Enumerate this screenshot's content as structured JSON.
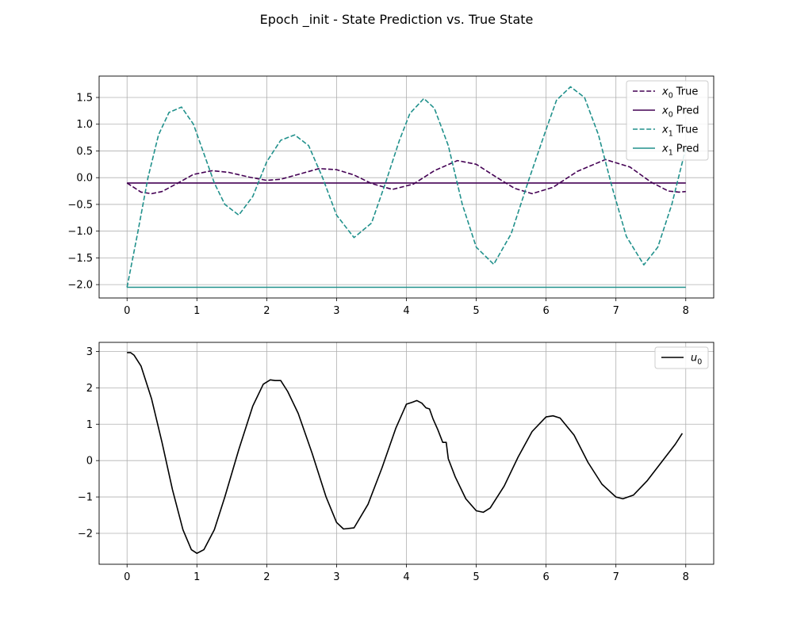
{
  "figure": {
    "title": "Epoch _init - State Prediction vs. True State"
  },
  "chart_data": [
    {
      "type": "line",
      "title": "",
      "xlabel": "",
      "ylabel": "",
      "xlim": [
        -0.4,
        8.4
      ],
      "ylim": [
        -2.25,
        1.9
      ],
      "xticks": [
        0,
        1,
        2,
        3,
        4,
        5,
        6,
        7,
        8
      ],
      "yticks": [
        -2.0,
        -1.5,
        -1.0,
        -0.5,
        0.0,
        0.5,
        1.0,
        1.5
      ],
      "ytick_labels": [
        "−2.0",
        "−1.5",
        "−1.0",
        "−0.5",
        "0.0",
        "0.5",
        "1.0",
        "1.5"
      ],
      "grid": true,
      "legend_position": "top-right",
      "series": [
        {
          "name": "True",
          "subscript_var": "x",
          "subscript_index": "0",
          "color": "#440154",
          "style": "dashed",
          "x": [
            0.0,
            0.2,
            0.35,
            0.5,
            0.7,
            0.95,
            1.22,
            1.45,
            1.75,
            2.0,
            2.2,
            2.45,
            2.75,
            3.0,
            3.25,
            3.5,
            3.8,
            4.1,
            4.4,
            4.73,
            5.0,
            5.3,
            5.55,
            5.8,
            6.1,
            6.45,
            6.85,
            7.2,
            7.5,
            7.75,
            7.9,
            8.0
          ],
          "y": [
            -0.1,
            -0.27,
            -0.3,
            -0.26,
            -0.12,
            0.06,
            0.13,
            0.1,
            0.01,
            -0.05,
            -0.03,
            0.06,
            0.17,
            0.15,
            0.05,
            -0.11,
            -0.22,
            -0.12,
            0.13,
            0.32,
            0.25,
            0.0,
            -0.2,
            -0.3,
            -0.18,
            0.12,
            0.34,
            0.2,
            -0.08,
            -0.25,
            -0.27,
            -0.26
          ]
        },
        {
          "name": "Pred",
          "subscript_var": "x",
          "subscript_index": "0",
          "color": "#440154",
          "style": "solid",
          "x": [
            0.0,
            8.0
          ],
          "y": [
            -0.1,
            -0.1
          ]
        },
        {
          "name": "True",
          "subscript_var": "x",
          "subscript_index": "1",
          "color": "#21918c",
          "style": "dashed",
          "x": [
            0.0,
            0.15,
            0.3,
            0.45,
            0.6,
            0.78,
            0.95,
            1.1,
            1.25,
            1.4,
            1.6,
            1.8,
            2.0,
            2.2,
            2.4,
            2.6,
            2.8,
            3.0,
            3.25,
            3.5,
            3.7,
            3.9,
            4.05,
            4.25,
            4.4,
            4.6,
            4.8,
            5.0,
            5.25,
            5.5,
            5.75,
            6.0,
            6.15,
            6.35,
            6.55,
            6.75,
            6.95,
            7.15,
            7.4,
            7.6,
            7.8,
            8.0
          ],
          "y": [
            -2.05,
            -1.05,
            0.0,
            0.8,
            1.22,
            1.32,
            1.0,
            0.45,
            -0.1,
            -0.5,
            -0.7,
            -0.35,
            0.3,
            0.7,
            0.8,
            0.6,
            0.0,
            -0.7,
            -1.12,
            -0.85,
            -0.1,
            0.7,
            1.2,
            1.48,
            1.3,
            0.6,
            -0.5,
            -1.3,
            -1.62,
            -1.05,
            -0.05,
            0.9,
            1.45,
            1.7,
            1.5,
            0.8,
            -0.2,
            -1.1,
            -1.63,
            -1.3,
            -0.5,
            0.55
          ]
        },
        {
          "name": "Pred",
          "subscript_var": "x",
          "subscript_index": "1",
          "color": "#21918c",
          "style": "solid",
          "x": [
            0.0,
            8.0
          ],
          "y": [
            -2.05,
            -2.05
          ]
        }
      ]
    },
    {
      "type": "line",
      "title": "",
      "xlabel": "",
      "ylabel": "",
      "xlim": [
        -0.4,
        8.4
      ],
      "ylim": [
        -2.85,
        3.25
      ],
      "xticks": [
        0,
        1,
        2,
        3,
        4,
        5,
        6,
        7,
        8
      ],
      "yticks": [
        -2,
        -1,
        0,
        1,
        2,
        3
      ],
      "ytick_labels": [
        "−2",
        "−1",
        "0",
        "1",
        "2",
        "3"
      ],
      "grid": true,
      "legend_position": "top-right",
      "series": [
        {
          "name": "",
          "subscript_var": "u",
          "subscript_index": "0",
          "color": "#000000",
          "style": "solid",
          "x": [
            0.0,
            0.05,
            0.1,
            0.2,
            0.35,
            0.5,
            0.65,
            0.8,
            0.92,
            1.0,
            1.1,
            1.25,
            1.4,
            1.6,
            1.8,
            1.95,
            2.05,
            2.12,
            2.2,
            2.3,
            2.45,
            2.65,
            2.85,
            3.0,
            3.1,
            3.25,
            3.45,
            3.65,
            3.85,
            4.0,
            4.08,
            4.15,
            4.22,
            4.28,
            4.33,
            4.38,
            4.45,
            4.52,
            4.57,
            4.6,
            4.7,
            4.85,
            5.0,
            5.1,
            5.2,
            5.4,
            5.6,
            5.8,
            6.0,
            6.1,
            6.2,
            6.4,
            6.6,
            6.8,
            7.0,
            7.1,
            7.25,
            7.45,
            7.65,
            7.85,
            7.95
          ],
          "y": [
            2.97,
            2.97,
            2.9,
            2.6,
            1.7,
            0.5,
            -0.8,
            -1.9,
            -2.45,
            -2.55,
            -2.45,
            -1.9,
            -1.0,
            0.3,
            1.5,
            2.1,
            2.22,
            2.2,
            2.2,
            1.9,
            1.3,
            0.2,
            -1.0,
            -1.7,
            -1.88,
            -1.85,
            -1.2,
            -0.2,
            0.9,
            1.55,
            1.6,
            1.65,
            1.58,
            1.45,
            1.42,
            1.15,
            0.85,
            0.5,
            0.5,
            0.05,
            -0.45,
            -1.05,
            -1.38,
            -1.42,
            -1.3,
            -0.7,
            0.1,
            0.8,
            1.2,
            1.23,
            1.17,
            0.7,
            -0.05,
            -0.65,
            -1.0,
            -1.05,
            -0.95,
            -0.55,
            -0.05,
            0.45,
            0.75
          ]
        }
      ]
    }
  ]
}
